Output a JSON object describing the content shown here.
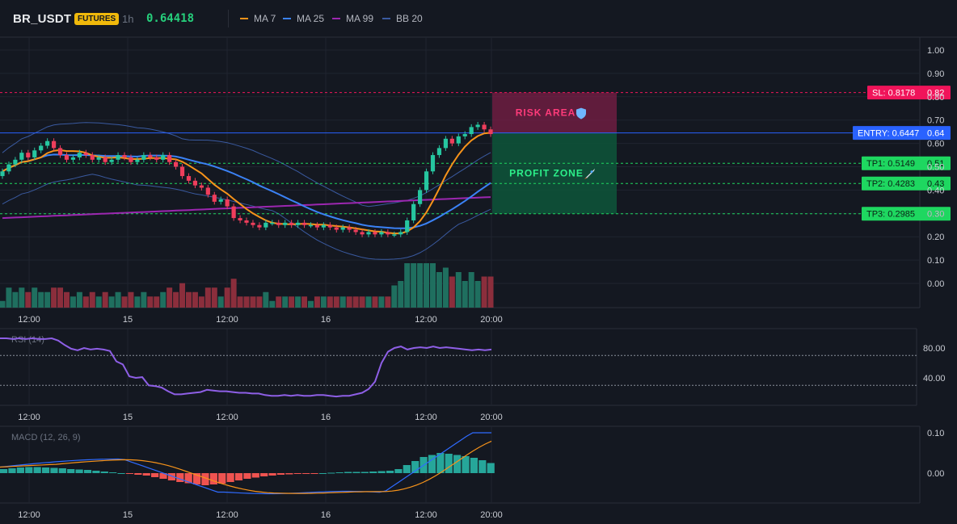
{
  "header": {
    "symbol": "BR_USDT",
    "badge": "FUTURES",
    "interval": "1h",
    "price": "0.64418",
    "legend": [
      {
        "label": "MA 7",
        "color": "#f7931a"
      },
      {
        "label": "MA 25",
        "color": "#3b82f6"
      },
      {
        "label": "MA 99",
        "color": "#9c27b0"
      },
      {
        "label": "BB 20",
        "color": "#3a5aa0"
      }
    ]
  },
  "colors": {
    "up": "#26c6a0",
    "down": "#ef3e5c",
    "vol_up": "#1f6f5f",
    "vol_down": "#8b2e3c",
    "entry": "#2962ff",
    "sl": "#f0145a",
    "tp": "#1ed760",
    "rsi": "#8e5fe6",
    "macd_line": "#2f6bff",
    "signal_line": "#f7931a",
    "hist_up": "#26a69a",
    "hist_down": "#ef5350"
  },
  "levels": {
    "sl": {
      "label": "SL: 0.8178",
      "axis": "0.82",
      "value": 0.8178
    },
    "entry": {
      "label": "ENTRY: 0.6447",
      "axis": "0.64",
      "value": 0.6447
    },
    "tp1": {
      "label": "TP1: 0.5149",
      "axis": "0.51",
      "value": 0.5149
    },
    "tp2": {
      "label": "TP2: 0.4283",
      "axis": "0.43",
      "value": 0.4283
    },
    "tp3": {
      "label": "TP3: 0.2985",
      "axis": "0.30",
      "value": 0.2985
    }
  },
  "zones": {
    "risk": {
      "label": "RISK AREA",
      "icon": "shield-icon"
    },
    "profit": {
      "label": "PROFIT ZONE",
      "icon": "rocket-icon"
    }
  },
  "chart_data": [
    {
      "type": "candlestick",
      "name": "price",
      "ylim": [
        -0.1,
        1.05
      ],
      "yticks": [
        "1.00",
        "0.90",
        "0.80",
        "0.70",
        "0.60",
        "0.50",
        "0.40",
        "0.30",
        "0.20",
        "0.10",
        "0.00"
      ],
      "xticks": [
        "12:00",
        "15",
        "12:00",
        "16",
        "12:00",
        "20:00"
      ],
      "grid": true,
      "candles_close": [
        0.48,
        0.51,
        0.53,
        0.56,
        0.54,
        0.57,
        0.59,
        0.61,
        0.58,
        0.55,
        0.53,
        0.54,
        0.56,
        0.55,
        0.53,
        0.54,
        0.52,
        0.53,
        0.55,
        0.54,
        0.52,
        0.53,
        0.55,
        0.54,
        0.53,
        0.55,
        0.52,
        0.5,
        0.46,
        0.44,
        0.42,
        0.41,
        0.38,
        0.35,
        0.36,
        0.33,
        0.28,
        0.27,
        0.26,
        0.25,
        0.24,
        0.26,
        0.26,
        0.25,
        0.26,
        0.25,
        0.26,
        0.25,
        0.25,
        0.24,
        0.25,
        0.24,
        0.23,
        0.24,
        0.23,
        0.22,
        0.21,
        0.22,
        0.21,
        0.22,
        0.21,
        0.21,
        0.22,
        0.27,
        0.34,
        0.4,
        0.48,
        0.55,
        0.58,
        0.62,
        0.6,
        0.63,
        0.64,
        0.67,
        0.68,
        0.66,
        0.64
      ],
      "ma7": "rising from 0.43 to 0.54, falling to 0.25, flat to 0.21, rising to 0.64",
      "volume_max": 0.1
    },
    {
      "type": "line",
      "name": "RSI (14)",
      "yticks": [
        "80.00",
        "40.00"
      ],
      "guides": [
        70,
        30
      ],
      "values": [
        93,
        93,
        92,
        93,
        92,
        93,
        92,
        92,
        93,
        90,
        84,
        79,
        77,
        80,
        78,
        79,
        78,
        76,
        62,
        58,
        42,
        40,
        41,
        30,
        29,
        27,
        22,
        18,
        18,
        19,
        20,
        21,
        24,
        23,
        22,
        22,
        21,
        20,
        20,
        19,
        19,
        17,
        16,
        16,
        17,
        16,
        17,
        16,
        16,
        17,
        17,
        16,
        15,
        16,
        16,
        18,
        20,
        25,
        35,
        60,
        75,
        80,
        82,
        78,
        80,
        81,
        80,
        82,
        80,
        81,
        80,
        79,
        78,
        77,
        78,
        77,
        78
      ]
    },
    {
      "type": "bar+line",
      "name": "MACD (12, 26, 9)",
      "yticks": [
        "0.10",
        "0.00"
      ],
      "histogram": [
        0.01,
        0.012,
        0.014,
        0.015,
        0.015,
        0.014,
        0.013,
        0.012,
        0.01,
        0.009,
        0.008,
        0.006,
        0.004,
        0.002,
        0.0,
        -0.002,
        -0.004,
        -0.006,
        -0.01,
        -0.014,
        -0.018,
        -0.022,
        -0.025,
        -0.028,
        -0.03,
        -0.028,
        -0.026,
        -0.022,
        -0.018,
        -0.014,
        -0.011,
        -0.008,
        -0.006,
        -0.004,
        -0.003,
        -0.002,
        -0.002,
        -0.001,
        0.0,
        0.001,
        0.002,
        0.003,
        0.003,
        0.003,
        0.004,
        0.005,
        0.006,
        0.01,
        0.02,
        0.03,
        0.04,
        0.045,
        0.05,
        0.048,
        0.045,
        0.042,
        0.038,
        0.032,
        0.025
      ],
      "macd": "rising to 0.06, falling to -0.05, flat, rising to 0.10",
      "signal": "rising to 0.06, falling to -0.05, rising to 0.06"
    }
  ]
}
